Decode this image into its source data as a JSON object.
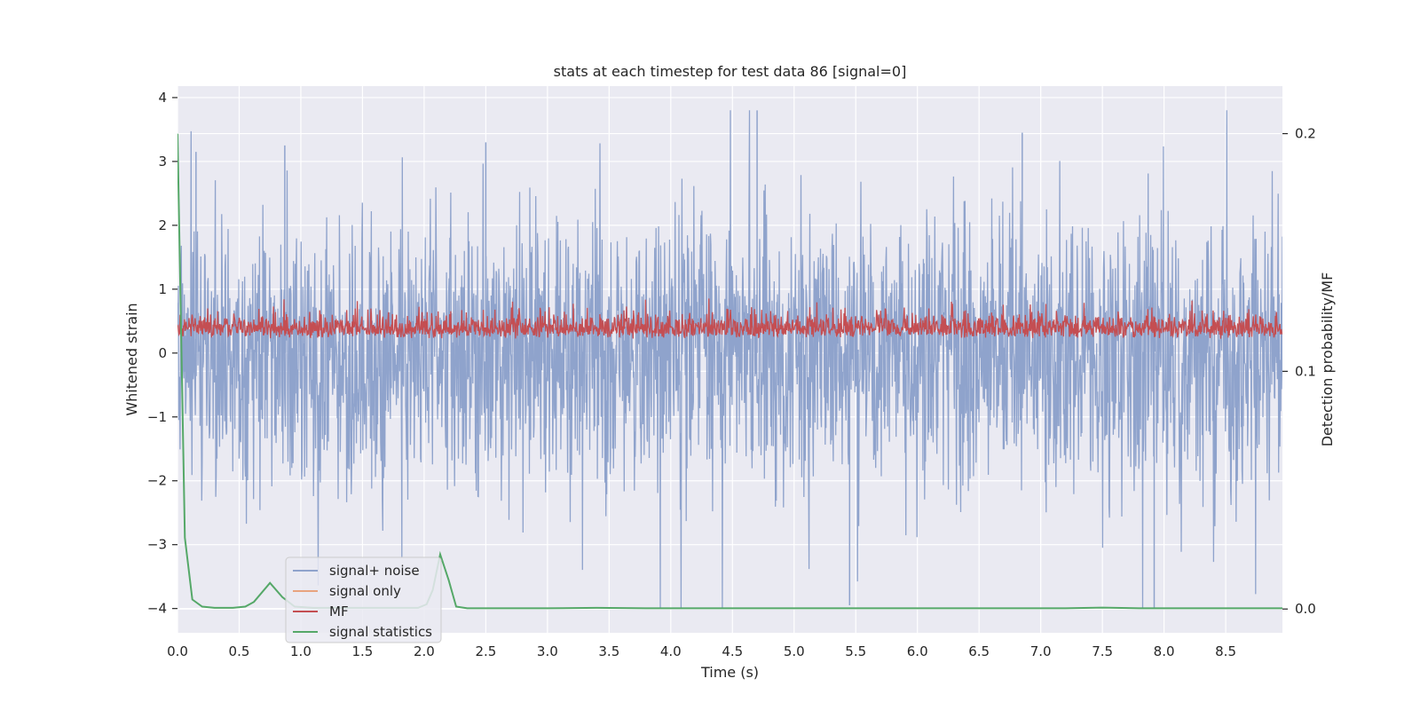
{
  "chart_data": {
    "type": "line",
    "title": "stats at each timestep for test data 86 [signal=0]",
    "xlabel": "Time (s)",
    "ylabel": "Whitened strain",
    "y2label": "Detection probability/MF",
    "xlim": [
      0,
      8.96
    ],
    "ylim": [
      -4.38,
      4.18
    ],
    "y2lim": [
      -0.01,
      0.22
    ],
    "x_ticks": [
      "0.0",
      "0.5",
      "1.0",
      "1.5",
      "2.0",
      "2.5",
      "3.0",
      "3.5",
      "4.0",
      "4.5",
      "5.0",
      "5.5",
      "6.0",
      "6.5",
      "7.0",
      "7.5",
      "8.0",
      "8.5"
    ],
    "y_ticks": [
      "4",
      "3",
      "2",
      "1",
      "0",
      "−1",
      "−2",
      "−3",
      "−4"
    ],
    "y2_ticks": [
      "0.2",
      "0.1",
      "0.0"
    ],
    "grid": true,
    "legend_position": "lower-left",
    "series": [
      {
        "name": "signal+ noise",
        "color": "#8fa3cc",
        "style": "noise",
        "approx_range": [
          -4.0,
          3.8
        ],
        "notable_peaks": [
          [
            0.15,
            3.15
          ],
          [
            0.87,
            3.25
          ],
          [
            2.5,
            3.3
          ],
          [
            4.7,
            3.8
          ],
          [
            6.85,
            3.45
          ],
          [
            5.45,
            -3.95
          ],
          [
            7.92,
            -4.0
          ]
        ]
      },
      {
        "name": "signal only",
        "color": "#e8a37f",
        "style": "flat",
        "values": []
      },
      {
        "name": "MF",
        "color": "#c44e52",
        "style": "noise",
        "approx_range": [
          0.0,
          1.0
        ]
      },
      {
        "name": "signal statistics",
        "color": "#55a868",
        "axis": "right",
        "x": [
          0.0,
          0.06,
          0.12,
          0.2,
          0.3,
          0.45,
          0.55,
          0.62,
          0.75,
          0.85,
          0.95,
          1.1,
          1.3,
          1.6,
          1.8,
          1.95,
          2.02,
          2.07,
          2.13,
          2.2,
          2.26,
          2.35,
          2.6,
          3.0,
          3.4,
          3.8,
          4.5,
          5.5,
          6.5,
          7.2,
          7.5,
          7.8,
          8.2,
          8.96
        ],
        "values": [
          0.2,
          0.03,
          0.004,
          0.001,
          0.0005,
          0.0005,
          0.001,
          0.003,
          0.011,
          0.005,
          0.001,
          0.0005,
          0.0005,
          0.0005,
          0.0005,
          0.0005,
          0.002,
          0.008,
          0.023,
          0.012,
          0.001,
          0.0003,
          0.0003,
          0.0003,
          0.0005,
          0.0003,
          0.0003,
          0.0003,
          0.0003,
          0.0003,
          0.0006,
          0.0003,
          0.0003,
          0.0003
        ]
      }
    ]
  }
}
